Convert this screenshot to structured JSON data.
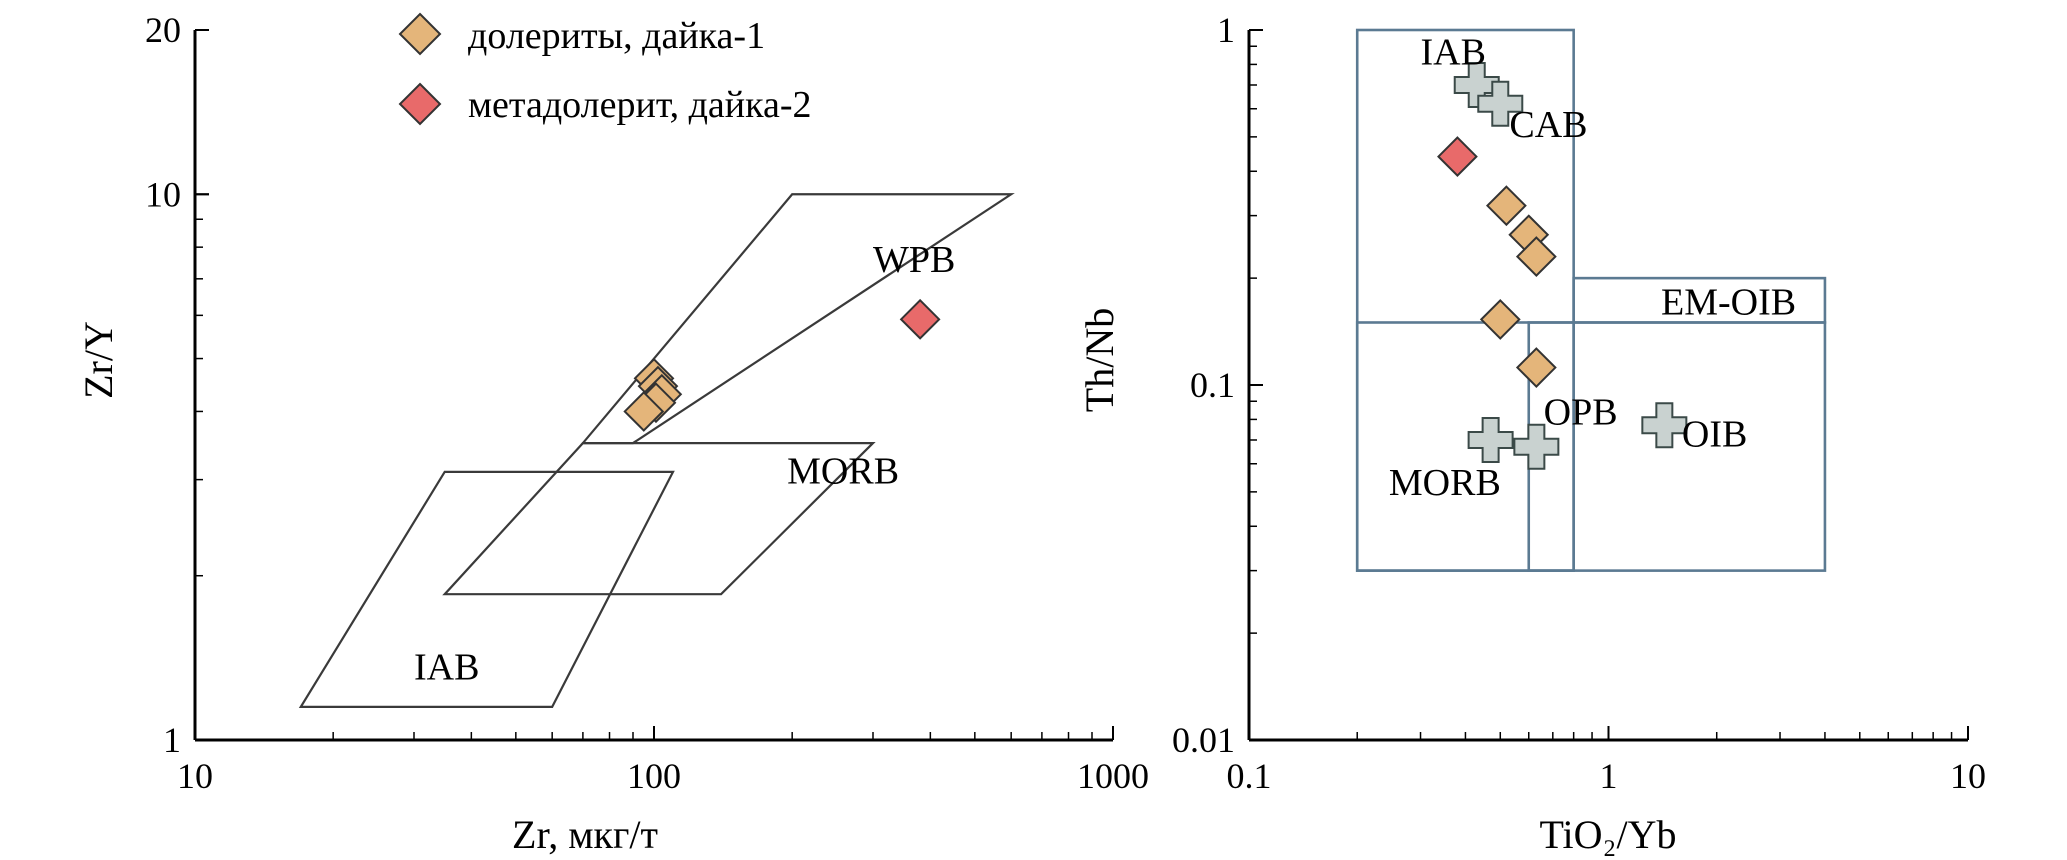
{
  "colors": {
    "dolerite": "#e4b57a",
    "metadolerite": "#e86a6a",
    "reference": "#c9d2d0",
    "field_left": "#3a3a3a",
    "field_right": "#5b7a92"
  },
  "legend": [
    {
      "label": "долериты, дайка-1",
      "series": "dolerite"
    },
    {
      "label": "метадолерит, дайка-2",
      "series": "metadolerite"
    }
  ],
  "chart_data": [
    {
      "type": "scatter",
      "xlabel": "Zr, мкг/т",
      "ylabel": "Zr/Y",
      "xscale": "log",
      "yscale": "log",
      "xlim": [
        10,
        1000
      ],
      "ylim": [
        1,
        20
      ],
      "x_ticks": [
        {
          "v": 10,
          "label": "10"
        },
        {
          "v": 100,
          "label": "100"
        },
        {
          "v": 1000,
          "label": "1000"
        }
      ],
      "y_ticks": [
        {
          "v": 1,
          "label": "1"
        },
        {
          "v": 10,
          "label": "10"
        },
        {
          "v": 20,
          "label": "20"
        }
      ],
      "fields": [
        {
          "name": "WPB",
          "label_pos": [
            300,
            7.2
          ],
          "polygon": [
            [
              200,
              10
            ],
            [
              600,
              10
            ],
            [
              90,
              3.5
            ],
            [
              70,
              3.5
            ]
          ]
        },
        {
          "name": "MORB",
          "label_pos": [
            195,
            2.95
          ],
          "polygon": [
            [
              70,
              3.5
            ],
            [
              300,
              3.5
            ],
            [
              140,
              1.85
            ],
            [
              35,
              1.85
            ]
          ]
        },
        {
          "name": "IAB",
          "label_pos": [
            30,
            1.29
          ],
          "polygon": [
            [
              35,
              3.1
            ],
            [
              110,
              3.1
            ],
            [
              60,
              1.15
            ],
            [
              17,
              1.15
            ]
          ]
        }
      ],
      "series": [
        {
          "key": "dolerite",
          "points": [
            [
              100,
              4.6
            ],
            [
              102,
              4.45
            ],
            [
              104,
              4.3
            ],
            [
              101,
              4.15
            ],
            [
              95,
              4.0
            ]
          ]
        },
        {
          "key": "metadolerite",
          "points": [
            [
              380,
              5.9
            ]
          ]
        }
      ]
    },
    {
      "type": "scatter",
      "xlabel": "TiO₂/Yb",
      "ylabel": "Th/Nb",
      "xscale": "log",
      "yscale": "log",
      "xlim": [
        0.1,
        10
      ],
      "ylim": [
        0.01,
        1
      ],
      "x_ticks": [
        {
          "v": 0.1,
          "label": "0.1"
        },
        {
          "v": 1,
          "label": "1"
        },
        {
          "v": 10,
          "label": "10"
        }
      ],
      "y_ticks": [
        {
          "v": 0.01,
          "label": "0.01"
        },
        {
          "v": 0.1,
          "label": "0.1"
        },
        {
          "v": 1,
          "label": "1"
        }
      ],
      "fields": [
        {
          "name": "IAB",
          "label_pos": [
            0.3,
            0.8
          ]
        },
        {
          "name": "CAB",
          "label_pos": [
            0.53,
            0.5
          ]
        },
        {
          "name": "EM-OIB",
          "label_pos": [
            1.4,
            0.158
          ]
        },
        {
          "name": "OPB",
          "label_pos": [
            0.66,
            0.0775
          ]
        },
        {
          "name": "OIB",
          "label_pos": [
            1.6,
            0.067
          ]
        },
        {
          "name": "MORB",
          "label_pos": [
            0.245,
            0.049
          ]
        }
      ],
      "rects": [
        [
          [
            0.2,
            0.03
          ],
          [
            0.8,
            1.0
          ]
        ],
        [
          [
            0.8,
            0.15
          ],
          [
            4.0,
            0.2
          ]
        ],
        [
          [
            0.2,
            0.03
          ],
          [
            4.0,
            0.15
          ]
        ],
        [
          [
            0.6,
            0.03
          ],
          [
            0.8,
            0.15
          ]
        ]
      ],
      "series": [
        {
          "key": "reference",
          "points": [
            [
              0.43,
              0.7
            ],
            [
              0.5,
              0.62
            ],
            [
              0.47,
              0.07
            ],
            [
              0.63,
              0.067
            ],
            [
              1.43,
              0.077
            ]
          ]
        },
        {
          "key": "dolerite",
          "points": [
            [
              0.52,
              0.32
            ],
            [
              0.6,
              0.265
            ],
            [
              0.63,
              0.23
            ],
            [
              0.5,
              0.153
            ],
            [
              0.63,
              0.112
            ]
          ]
        },
        {
          "key": "metadolerite",
          "points": [
            [
              0.38,
              0.44
            ]
          ]
        }
      ]
    }
  ]
}
